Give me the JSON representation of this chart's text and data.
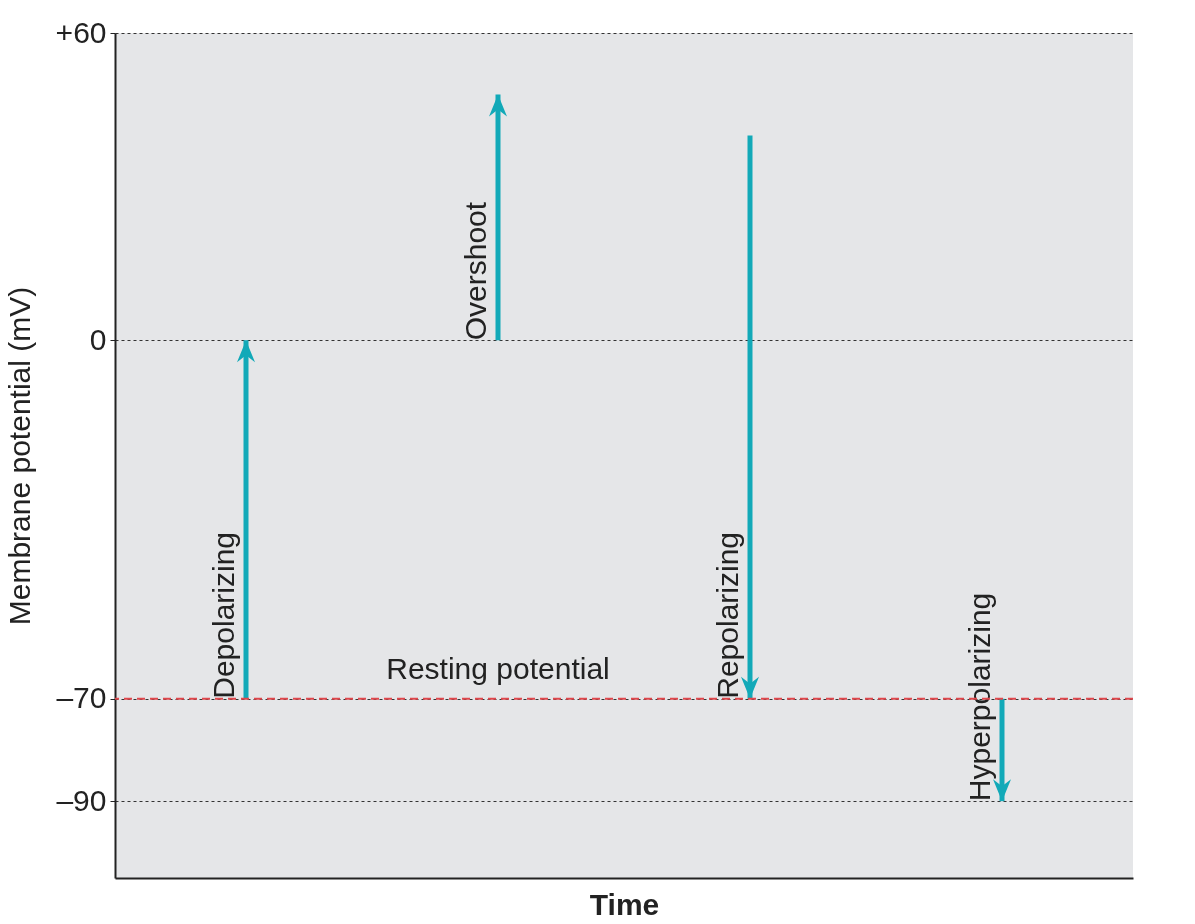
{
  "chart_data": {
    "type": "bar",
    "xlabel": "Time",
    "ylabel": "Membrane potential (mV)",
    "categories": [
      null,
      null,
      null,
      null
    ],
    "series": [
      {
        "name": "Depolarizing",
        "color": "#12a9b8",
        "values": [
          70,
          null,
          null,
          null
        ],
        "base": [
          -70,
          null,
          null,
          null
        ]
      },
      {
        "name": "Overshoot",
        "color": "#12a9b8",
        "values": [
          null,
          48,
          null,
          null
        ],
        "base": [
          null,
          0,
          null,
          null
        ]
      },
      {
        "name": "Repolarizing",
        "color": "#12a9b8",
        "values": [
          null,
          null,
          -110,
          null
        ],
        "base": [
          null,
          null,
          40,
          null
        ]
      },
      {
        "name": "Hyperpolarizing",
        "color": "#12a9b8",
        "values": [
          null,
          null,
          null,
          -20
        ],
        "base": [
          null,
          null,
          null,
          -70
        ]
      }
    ],
    "ylim": [
      -105,
      60
    ],
    "yticks": [
      {
        "value": 60,
        "label": "+60"
      },
      0,
      {
        "value": -70,
        "label": "–70"
      },
      {
        "value": -90,
        "label": "–90"
      }
    ],
    "grid": "y",
    "ref_lines": [
      {
        "axis": "y",
        "value": -70,
        "label": "Resting potential",
        "color": "#e0474c",
        "line_style": "dashed"
      }
    ]
  }
}
